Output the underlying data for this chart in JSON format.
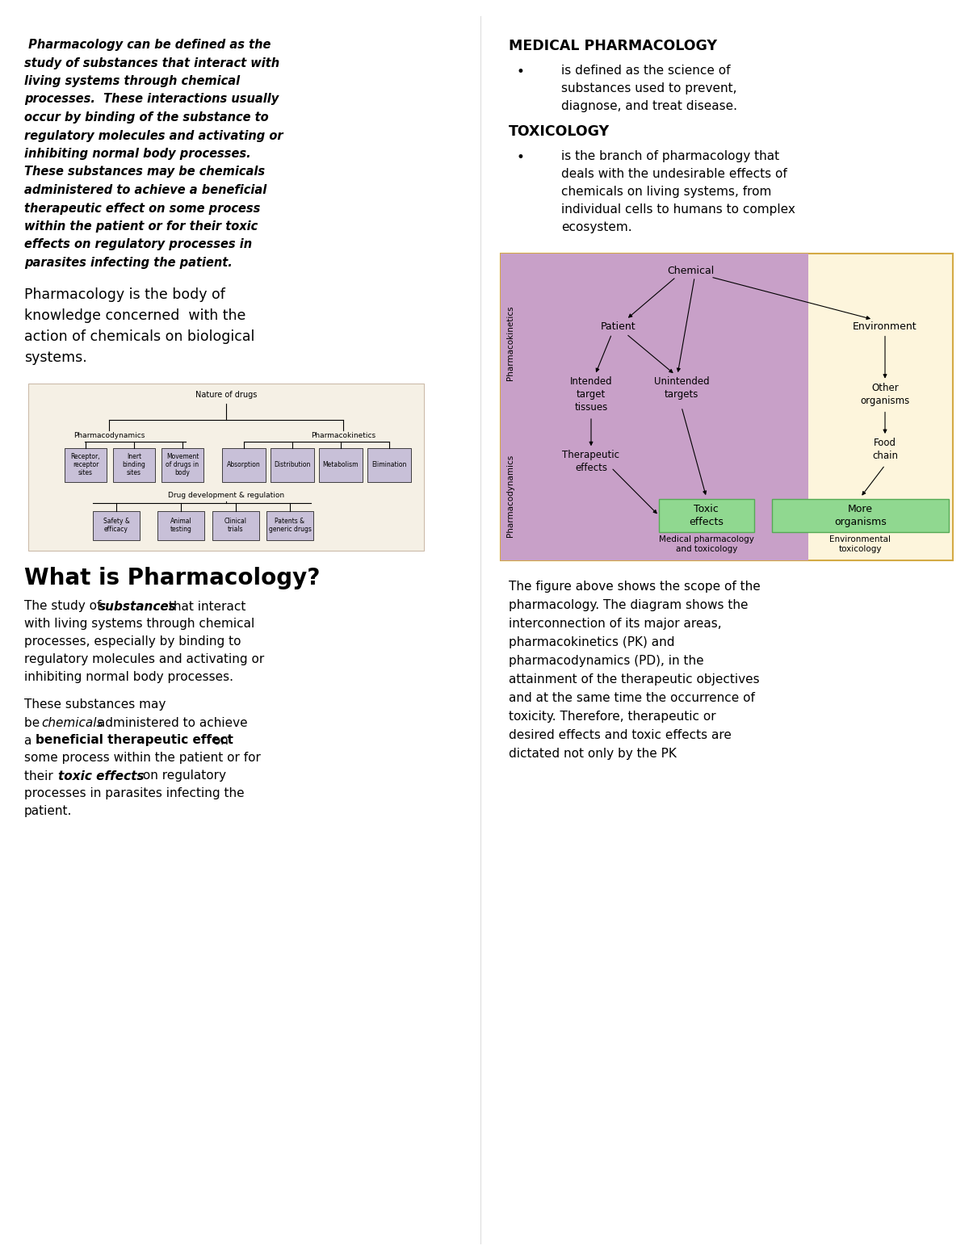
{
  "bg_color": "#ffffff",
  "italic_para": "Pharmacology can be defined as the study of substances that interact with living systems through chemical processes.  These interactions usually occur by binding of the substance to regulatory molecules and activating or inhibiting normal body processes. These substances may be chemicals administered to achieve a beneficial therapeutic effect on some process within the patient or for their toxic effects on regulatory processes in parasites infecting the patient.",
  "body_para": "Pharmacology is the body of\nknowledge concerned  with the\naction of chemicals on biological\nsystems.",
  "what_is_title": "What is Pharmacology?",
  "med_pharm_title": "MEDICAL PHARMACOLOGY",
  "med_pharm_bullet": "is defined as the science of\nsubstances used to prevent,\ndiagnose, and treat disease.",
  "toxicology_title": "TOXICOLOGY",
  "toxicology_bullet": "is the branch of pharmacology that\ndeals with the undesirable effects of\nchemicals on living systems, from\nindividual cells to humans to complex\necosystem.",
  "figure_caption": "The figure above shows the scope of the\npharmacoogy. The diagram shows the\ninterconnection of its major areas,\npharmacokinetics (PK) and\npharmacodynamics (PD), in the\nattainment of the therapeutic objectives\nand at the same time the occurrence of\ntoxicity. Therefore, therapeutic or\ndesired effects and toxic effects are\ndictated not only by the PK",
  "pk_color": "#c8a0c8",
  "env_color": "#fdf5dc",
  "green_color": "#90d890",
  "diagram_border": "#d4aa44"
}
